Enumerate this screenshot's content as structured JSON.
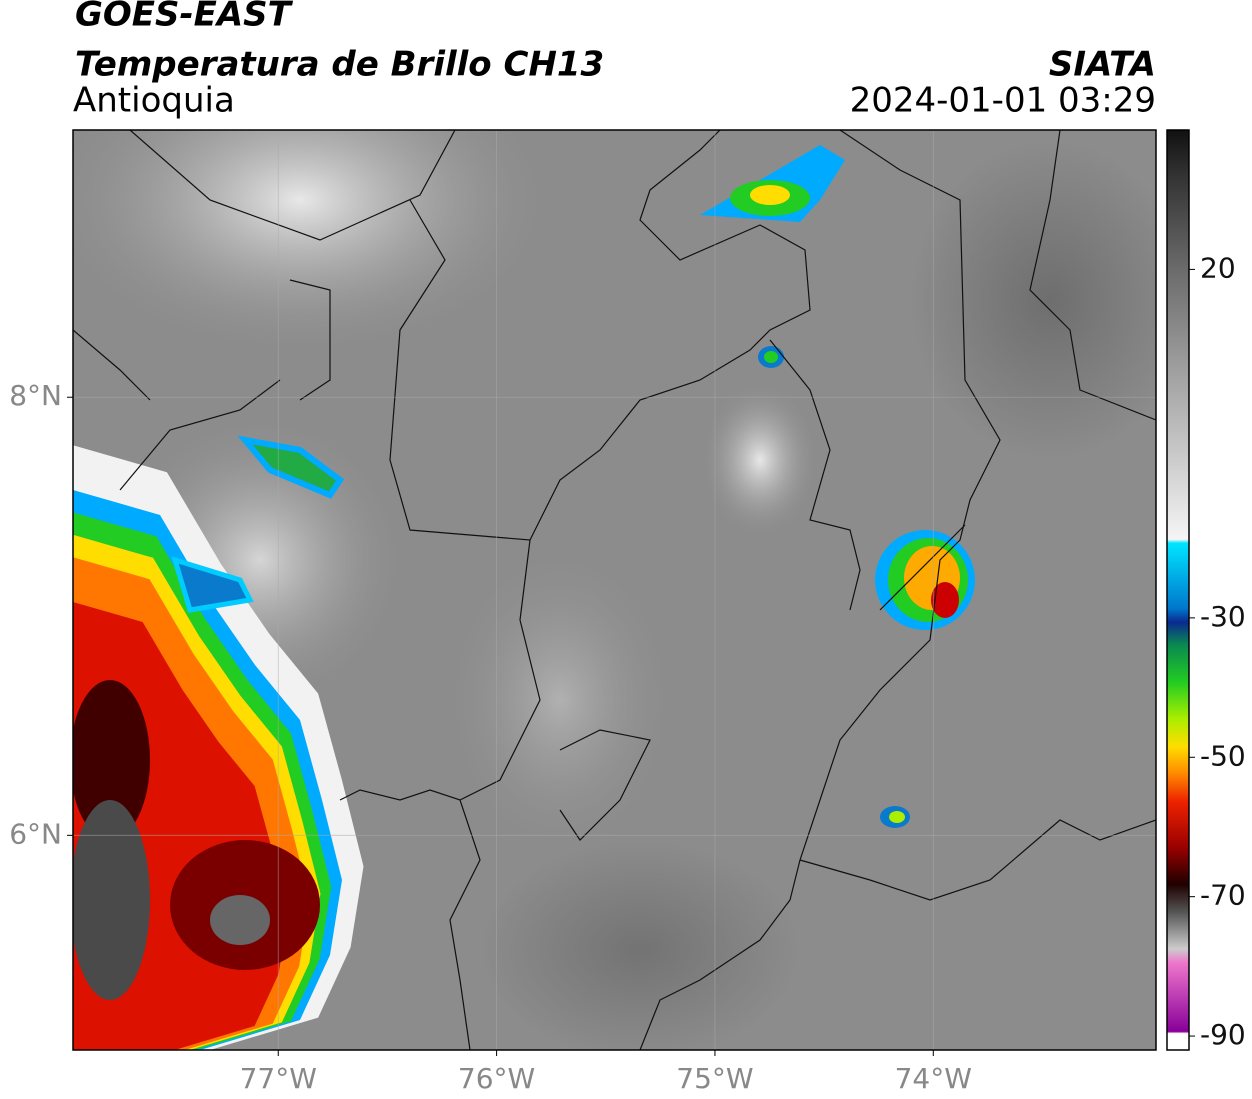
{
  "header": {
    "title": "GOES-EAST",
    "subtitle": "Temperatura de Brillo CH13",
    "region": "Antioquia",
    "source": "SIATA",
    "datetime": "2024-01-01 03:29"
  },
  "map": {
    "xlim": [
      -77.94,
      -72.98
    ],
    "ylim": [
      5.02,
      9.22
    ],
    "xticks": [
      {
        "value": -77,
        "label": "77°W"
      },
      {
        "value": -76,
        "label": "76°W"
      },
      {
        "value": -75,
        "label": "75°W"
      },
      {
        "value": -74,
        "label": "74°W"
      }
    ],
    "yticks": [
      {
        "value": 6,
        "label": "6°N"
      },
      {
        "value": 8,
        "label": "8°N"
      }
    ],
    "grid": true
  },
  "colorbar": {
    "ylim": [
      -92,
      40
    ],
    "yticks": [
      20,
      -30,
      -50,
      -70,
      -90
    ]
  }
}
